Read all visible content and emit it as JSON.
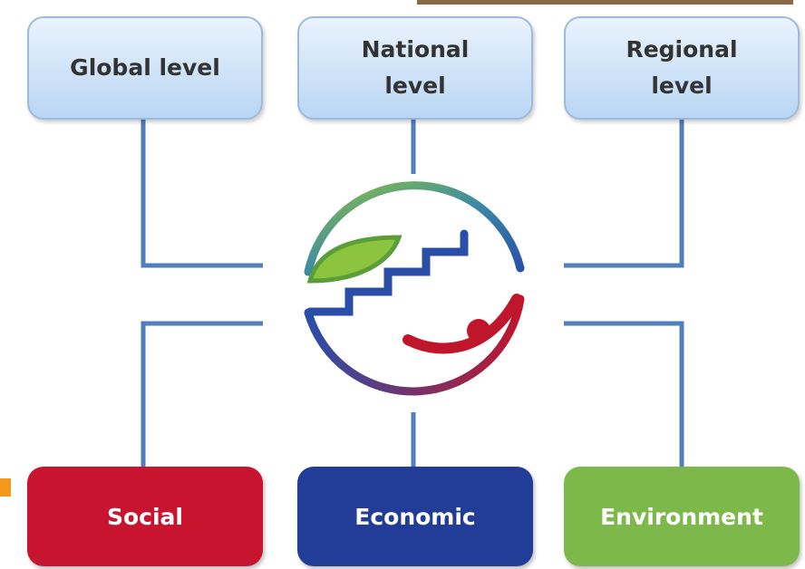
{
  "top_nodes": [
    {
      "label": "Global level"
    },
    {
      "label": "National level"
    },
    {
      "label": "Regional level"
    }
  ],
  "bottom_nodes": [
    {
      "label": "Social"
    },
    {
      "label": "Economic"
    },
    {
      "label": "Environment"
    }
  ]
}
